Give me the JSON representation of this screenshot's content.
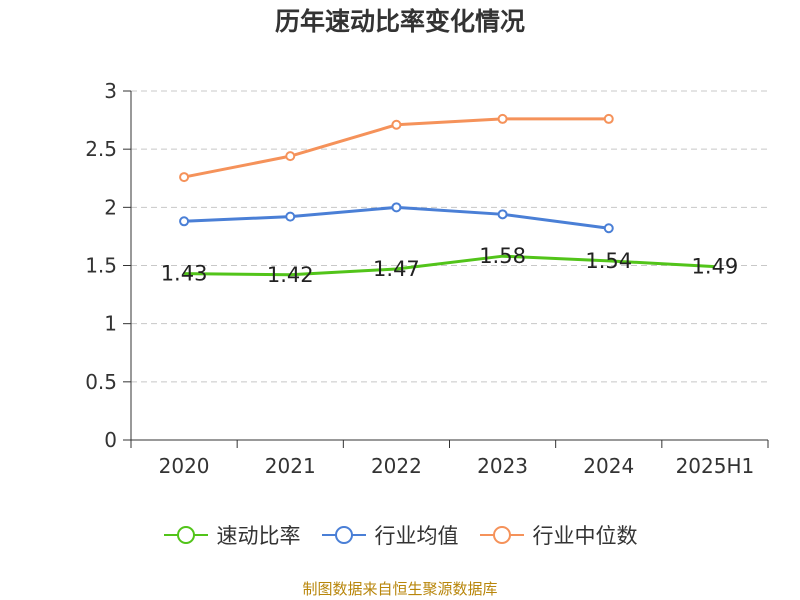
{
  "chart_data": {
    "type": "line",
    "title": "历年速动比率变化情况",
    "xlabel": "",
    "ylabel": "",
    "categories": [
      "2020",
      "2021",
      "2022",
      "2023",
      "2024",
      "2025H1"
    ],
    "ylim": [
      0,
      3
    ],
    "yticks": [
      "0",
      "0.5",
      "1",
      "1.5",
      "2",
      "2.5",
      "3"
    ],
    "grid": true,
    "legend_position": "bottom",
    "series": [
      {
        "name": "速动比率",
        "color": "#52c41a",
        "show_markers": false,
        "show_labels": true,
        "values": [
          1.43,
          1.42,
          1.47,
          1.58,
          1.54,
          1.49
        ],
        "labels": [
          "1.43",
          "1.42",
          "1.47",
          "1.58",
          "1.54",
          "1.49"
        ]
      },
      {
        "name": "行业均值",
        "color": "#4a7fd6",
        "show_markers": true,
        "show_labels": false,
        "values": [
          1.88,
          1.92,
          2.0,
          1.94,
          1.82,
          null
        ]
      },
      {
        "name": "行业中位数",
        "color": "#f5925a",
        "show_markers": true,
        "show_labels": false,
        "values": [
          2.26,
          2.44,
          2.71,
          2.76,
          2.76,
          null
        ]
      }
    ]
  },
  "source": "制图数据来自恒生聚源数据库"
}
